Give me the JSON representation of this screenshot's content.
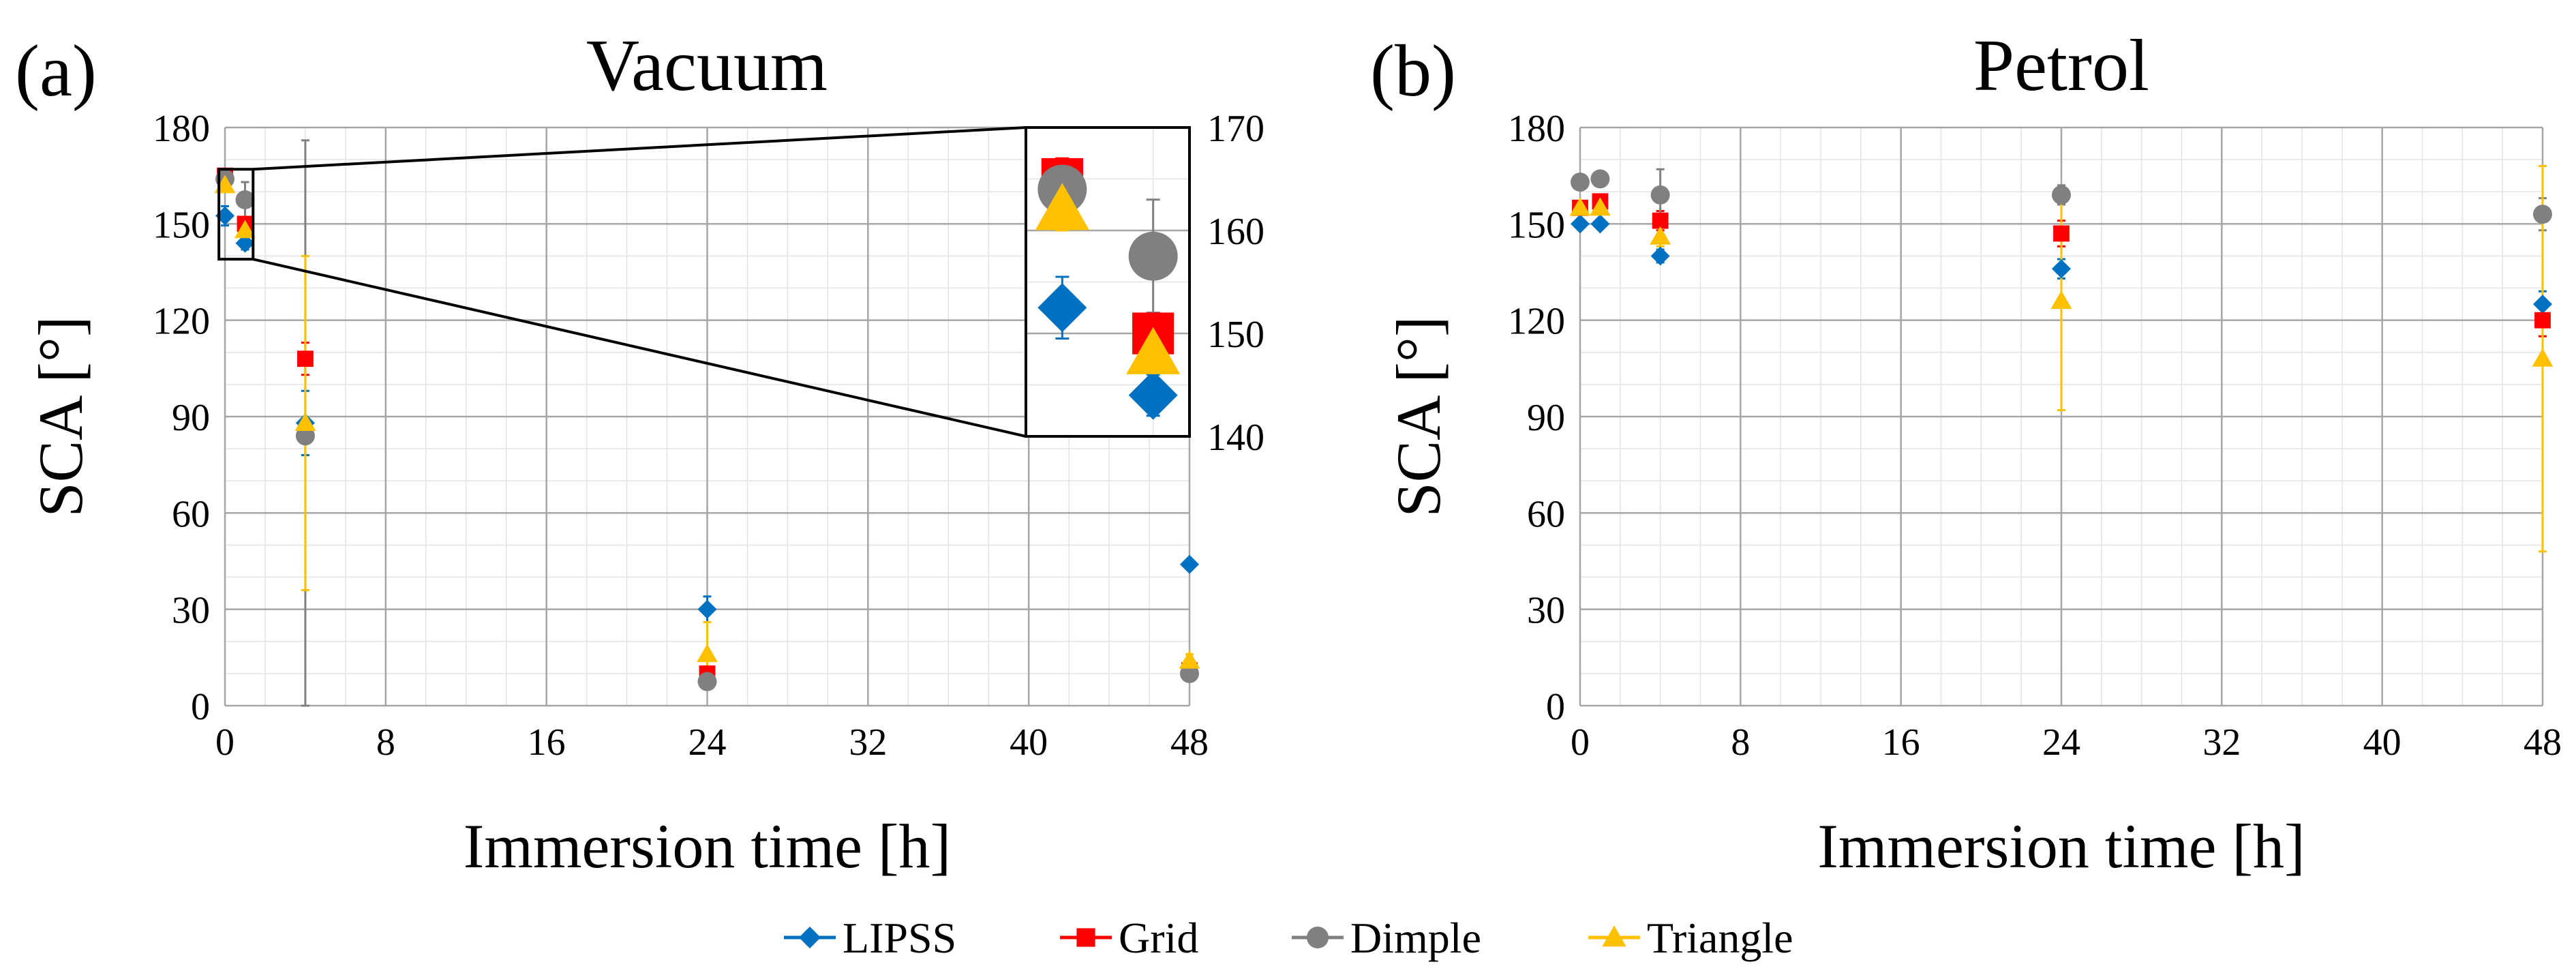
{
  "colors": {
    "LIPSS": "#0070C0",
    "Grid": "#FF0000",
    "Dimple": "#808080",
    "Triangle": "#FFC000"
  },
  "legend": [
    {
      "name": "LIPSS",
      "label": "LIPSS",
      "marker": "diamond"
    },
    {
      "name": "Grid",
      "label": "Grid",
      "marker": "square"
    },
    {
      "name": "Dimple",
      "label": "Dimple",
      "marker": "circle"
    },
    {
      "name": "Triangle",
      "label": "Triangle",
      "marker": "triangle"
    }
  ],
  "chart_data": [
    {
      "type": "scatter",
      "id": "a",
      "panel_label": "(a)",
      "title": "Vacuum",
      "xlabel": "Immersion time [h]",
      "ylabel": "SCA [°]",
      "xlim": [
        0,
        48
      ],
      "xticks": [
        0,
        8,
        16,
        24,
        32,
        40,
        48
      ],
      "ylim": [
        0,
        180
      ],
      "yticks": [
        0,
        30,
        60,
        90,
        120,
        150,
        180
      ],
      "grid": true,
      "series": [
        {
          "name": "LIPSS",
          "x": [
            0,
            1,
            4,
            24,
            48
          ],
          "y": [
            152.5,
            144,
            88,
            30,
            44
          ],
          "err": [
            3,
            2,
            10,
            4,
            0
          ]
        },
        {
          "name": "Grid",
          "x": [
            0,
            1,
            4,
            24,
            48
          ],
          "y": [
            165,
            150,
            108,
            10,
            11
          ],
          "err": [
            2,
            2,
            5,
            2,
            0
          ]
        },
        {
          "name": "Dimple",
          "x": [
            0,
            1,
            4,
            24,
            48
          ],
          "y": [
            164,
            157.5,
            84,
            7.5,
            10
          ],
          "err": [
            2,
            5.5,
            92,
            2,
            0
          ]
        },
        {
          "name": "Triangle",
          "x": [
            0,
            1,
            4,
            24,
            48
          ],
          "y": [
            162,
            148,
            88,
            16,
            14
          ],
          "err": [
            2,
            3,
            52,
            10,
            2
          ]
        }
      ],
      "inset": {
        "xlim": [
          -0.4,
          1.4
        ],
        "ylim": [
          140,
          170
        ],
        "yticks": [
          140,
          150,
          160,
          170
        ],
        "zoom_box_x": [
          -0.3,
          1.4
        ],
        "zoom_box_y": [
          139,
          167
        ]
      }
    },
    {
      "type": "scatter",
      "id": "b",
      "panel_label": "(b)",
      "title": "Petrol",
      "xlabel": "Immersion time [h]",
      "ylabel": "SCA [°]",
      "xlim": [
        0,
        48
      ],
      "xticks": [
        0,
        8,
        16,
        24,
        32,
        40,
        48
      ],
      "ylim": [
        0,
        180
      ],
      "yticks": [
        0,
        30,
        60,
        90,
        120,
        150,
        180
      ],
      "grid": true,
      "series": [
        {
          "name": "LIPSS",
          "x": [
            0,
            1,
            4,
            24,
            48
          ],
          "y": [
            150,
            150,
            140,
            136,
            125
          ],
          "err": [
            0,
            0,
            2,
            3,
            4
          ]
        },
        {
          "name": "Grid",
          "x": [
            0,
            1,
            4,
            24,
            48
          ],
          "y": [
            155,
            157,
            151,
            147,
            120
          ],
          "err": [
            2,
            2,
            3,
            4,
            5
          ]
        },
        {
          "name": "Dimple",
          "x": [
            0,
            1,
            4,
            24,
            48
          ],
          "y": [
            163,
            164,
            159,
            159,
            153
          ],
          "err": [
            2,
            2,
            8,
            3,
            5
          ]
        },
        {
          "name": "Triangle",
          "x": [
            0,
            1,
            4,
            24,
            48
          ],
          "y": [
            155,
            155,
            146,
            126,
            108
          ],
          "err": [
            2,
            2,
            3,
            34,
            60
          ]
        }
      ]
    }
  ]
}
